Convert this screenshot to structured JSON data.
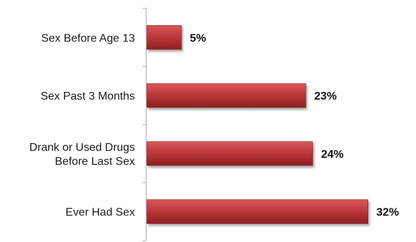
{
  "chart_data": {
    "type": "bar",
    "orientation": "horizontal",
    "categories": [
      [
        "Sex Before Age 13"
      ],
      [
        "Sex Past 3 Months"
      ],
      [
        "Drank or Used Drugs",
        "Before Last Sex"
      ],
      [
        "Ever Had Sex"
      ]
    ],
    "values": [
      5,
      23,
      24,
      32
    ],
    "value_labels": [
      "5%",
      "23%",
      "24%",
      "32%"
    ],
    "unit": "%",
    "xlim": [
      0,
      36
    ],
    "grid": false,
    "legend": "none",
    "title": "",
    "xlabel": "",
    "ylabel": ""
  },
  "colors": {
    "bar_top": "#d9585a",
    "bar_mid": "#c0393b",
    "bar_bottom": "#8e1f22",
    "bar_stroke": "#7a1a1c",
    "axis": "#b5b5b5"
  }
}
